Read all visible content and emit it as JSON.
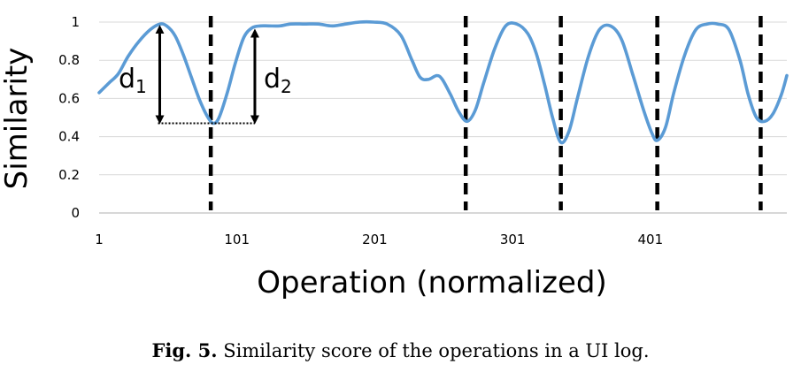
{
  "caption": {
    "label": "Fig. 5.",
    "text": "Similarity score of the operations in a UI log."
  },
  "annotations": {
    "d1": {
      "main": "d",
      "sub": "1"
    },
    "d2": {
      "main": "d",
      "sub": "2"
    }
  },
  "chart_data": {
    "type": "line",
    "title": "",
    "xlabel": "Operation (normalized)",
    "ylabel": "Similarity",
    "x_ticks": [
      1,
      101,
      201,
      301,
      401
    ],
    "y_ticks": [
      0,
      0.2,
      0.4,
      0.6,
      0.8,
      1
    ],
    "y_tick_labels": [
      "0",
      "0.2",
      "0.4",
      "0.6",
      "0.8",
      "1"
    ],
    "xlim": [
      1,
      500
    ],
    "ylim": [
      0,
      1
    ],
    "grid": "horizontal",
    "series_color": "#5B9BD5",
    "boundary_x": [
      82,
      267,
      336,
      406,
      481
    ],
    "series": [
      {
        "x": [
          1,
          8,
          15,
          22,
          30,
          38,
          45,
          50,
          56,
          62,
          68,
          74,
          80,
          84,
          88,
          94,
          100,
          106,
          112,
          118,
          124,
          132,
          140,
          150,
          160,
          170,
          180,
          190,
          200,
          210,
          220,
          228,
          234,
          240,
          246,
          250,
          256,
          262,
          268,
          274,
          280,
          288,
          296,
          304,
          312,
          318,
          324,
          330,
          336,
          342,
          348,
          356,
          364,
          372,
          380,
          388,
          396,
          402,
          406,
          412,
          418,
          426,
          434,
          442,
          450,
          458,
          466,
          472,
          478,
          484,
          490,
          496,
          500
        ],
        "y": [
          0.63,
          0.68,
          0.73,
          0.82,
          0.9,
          0.96,
          0.99,
          0.98,
          0.93,
          0.83,
          0.71,
          0.59,
          0.5,
          0.47,
          0.5,
          0.63,
          0.79,
          0.92,
          0.97,
          0.98,
          0.98,
          0.98,
          0.99,
          0.99,
          0.99,
          0.98,
          0.99,
          1.0,
          1.0,
          0.99,
          0.93,
          0.8,
          0.71,
          0.7,
          0.72,
          0.7,
          0.62,
          0.53,
          0.48,
          0.54,
          0.68,
          0.86,
          0.98,
          0.99,
          0.94,
          0.84,
          0.68,
          0.5,
          0.37,
          0.43,
          0.6,
          0.82,
          0.96,
          0.98,
          0.91,
          0.73,
          0.54,
          0.42,
          0.38,
          0.45,
          0.63,
          0.83,
          0.96,
          0.99,
          0.99,
          0.96,
          0.8,
          0.62,
          0.5,
          0.48,
          0.52,
          0.62,
          0.72
        ]
      }
    ]
  }
}
